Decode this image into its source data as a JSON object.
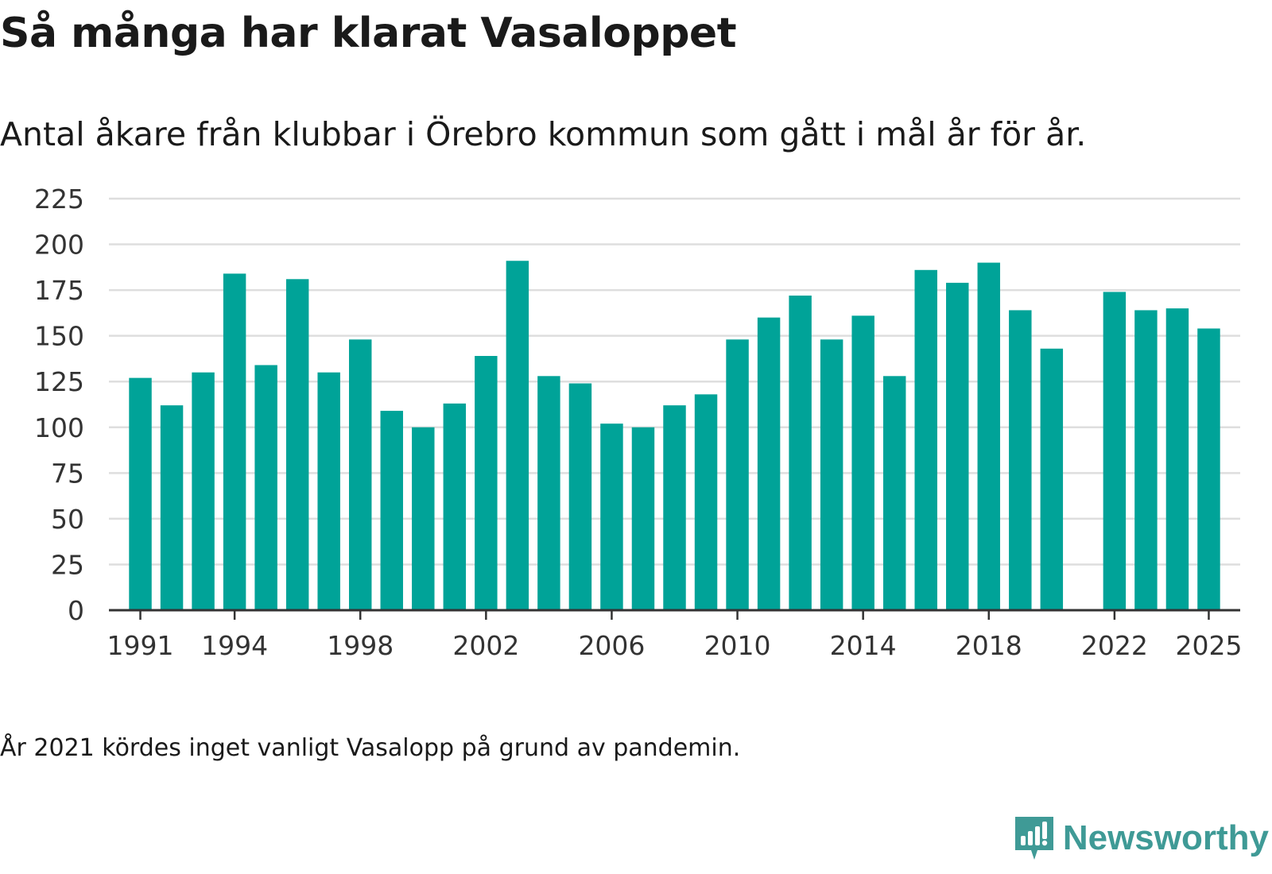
{
  "header": {
    "title": "Så många har klarat Vasaloppet",
    "subtitle": "Antal åkare från klubbar i Örebro kommun som gått i mål år för år."
  },
  "footnote": "År 2021 kördes inget vanligt Vasalopp på grund av pandemin.",
  "brand": {
    "name": "Newsworthy",
    "icon": "newsworthy-logo-icon"
  },
  "colors": {
    "bar": "#00a398",
    "grid": "#dedede",
    "axis": "#333333",
    "brand": "#3f9a96"
  },
  "chart_data": {
    "type": "bar",
    "title": "Så många har klarat Vasaloppet",
    "subtitle": "Antal åkare från klubbar i Örebro kommun som gått i mål år för år.",
    "xlabel": "",
    "ylabel": "",
    "ylim": [
      0,
      225
    ],
    "yticks": [
      0,
      25,
      50,
      75,
      100,
      125,
      150,
      175,
      200,
      225
    ],
    "xlim": [
      1990,
      2026
    ],
    "xticks": [
      1991,
      1994,
      1998,
      2002,
      2006,
      2010,
      2014,
      2018,
      2022,
      2025
    ],
    "grid": true,
    "categories": [
      1991,
      1992,
      1993,
      1994,
      1995,
      1996,
      1997,
      1998,
      1999,
      2000,
      2001,
      2002,
      2003,
      2004,
      2005,
      2006,
      2007,
      2008,
      2009,
      2010,
      2011,
      2012,
      2013,
      2014,
      2015,
      2016,
      2017,
      2018,
      2019,
      2020,
      2021,
      2022,
      2023,
      2024,
      2025
    ],
    "values": [
      127,
      112,
      130,
      184,
      134,
      181,
      130,
      148,
      109,
      100,
      113,
      139,
      191,
      128,
      124,
      102,
      100,
      112,
      118,
      148,
      160,
      172,
      148,
      161,
      128,
      186,
      179,
      190,
      164,
      143,
      null,
      174,
      164,
      165,
      154
    ]
  }
}
